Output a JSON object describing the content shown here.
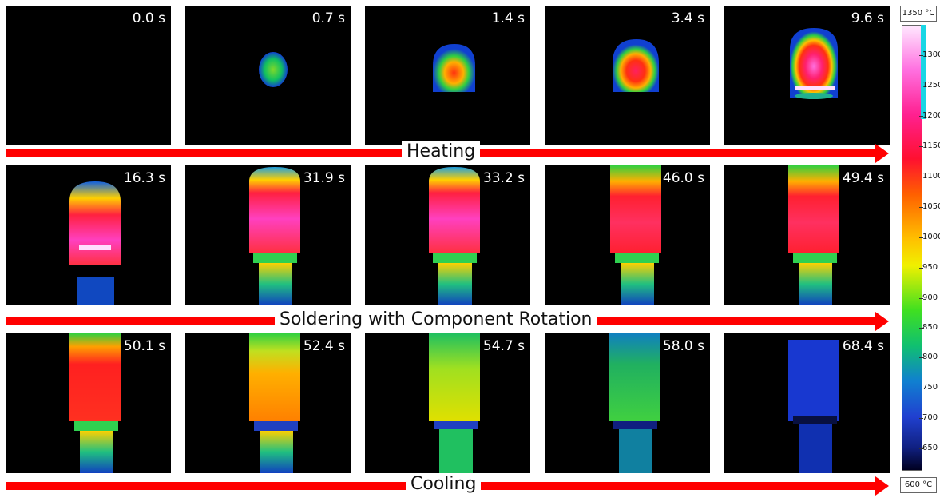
{
  "rows": [
    {
      "phase": "Heating",
      "frames": [
        {
          "time": "0.0 s"
        },
        {
          "time": "0.7 s"
        },
        {
          "time": "1.4 s"
        },
        {
          "time": "3.4 s"
        },
        {
          "time": "9.6 s"
        }
      ]
    },
    {
      "phase": "Soldering with Component Rotation",
      "frames": [
        {
          "time": "16.3 s"
        },
        {
          "time": "31.9 s"
        },
        {
          "time": "33.2 s"
        },
        {
          "time": "46.0 s"
        },
        {
          "time": "49.4 s"
        }
      ]
    },
    {
      "phase": "Cooling",
      "frames": [
        {
          "time": "50.1 s"
        },
        {
          "time": "52.4 s"
        },
        {
          "time": "54.7 s"
        },
        {
          "time": "58.0 s"
        },
        {
          "time": "68.4 s"
        }
      ]
    }
  ],
  "colorbar": {
    "max_label": "1350 °C",
    "min_label": "600 °C",
    "ticks": [
      "1300",
      "1250",
      "1200",
      "1150",
      "1100",
      "1050",
      "1000",
      "950",
      "900",
      "850",
      "800",
      "750",
      "700",
      "650"
    ]
  },
  "colors": {
    "arrow": "#ff0000",
    "frame_bg": "#000000"
  }
}
